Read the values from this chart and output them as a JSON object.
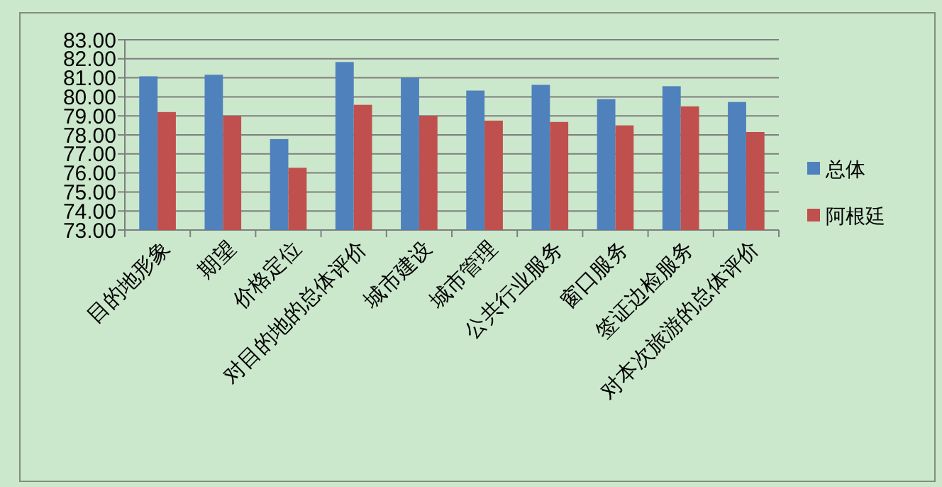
{
  "chart_data": {
    "type": "bar",
    "categories": [
      "目的地形象",
      "期望",
      "价格定位",
      "对目的地的总体评价",
      "城市建设",
      "城市管理",
      "公共行业服务",
      "窗口服务",
      "签证边检服务",
      "对本次旅游的总体评价"
    ],
    "series": [
      {
        "name": "总体",
        "color": "#4f81bd",
        "values": [
          81.08,
          81.16,
          77.78,
          81.83,
          81.0,
          80.33,
          80.63,
          79.88,
          80.56,
          79.73
        ]
      },
      {
        "name": "阿根廷",
        "color": "#c0504d",
        "values": [
          79.2,
          79.0,
          76.27,
          79.58,
          79.0,
          78.75,
          78.68,
          78.5,
          79.5,
          78.15
        ]
      }
    ],
    "ylim": [
      73,
      83
    ],
    "yticks": [
      {
        "value": 73,
        "label": "73.00"
      },
      {
        "value": 74,
        "label": "74.00"
      },
      {
        "value": 75,
        "label": "75.00"
      },
      {
        "value": 76,
        "label": "76.00"
      },
      {
        "value": 77,
        "label": "77.00"
      },
      {
        "value": 78,
        "label": "78.00"
      },
      {
        "value": 79,
        "label": "79.00"
      },
      {
        "value": 80,
        "label": "80.00"
      },
      {
        "value": 81,
        "label": "81.00"
      },
      {
        "value": 82,
        "label": "82.00"
      },
      {
        "value": 83,
        "label": "83.00"
      }
    ],
    "grid": "y",
    "legend": "right"
  }
}
